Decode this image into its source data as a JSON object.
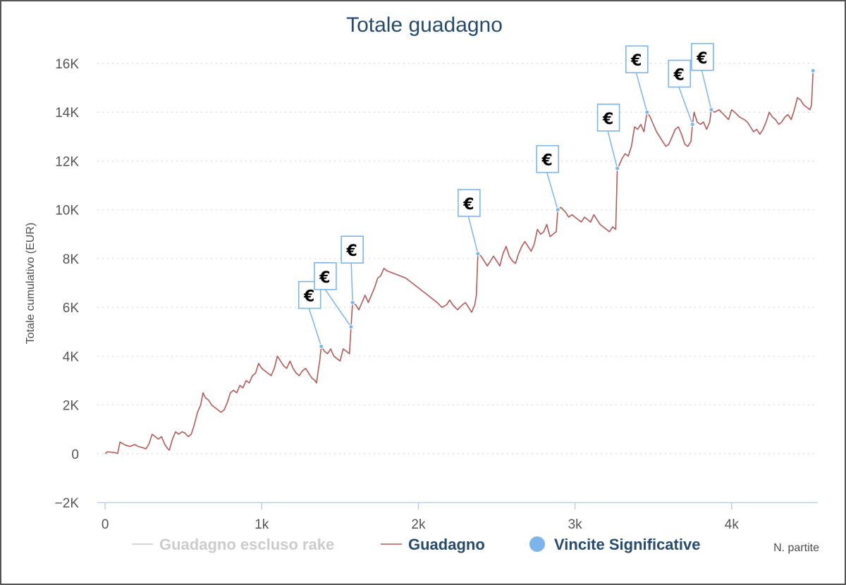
{
  "chart_data": {
    "type": "line",
    "title": "Totale guadagno",
    "xlabel": "N. partite",
    "ylabel": "Totale cumulativo (EUR)",
    "xlim": [
      -50,
      4550
    ],
    "ylim": [
      -2000,
      16000
    ],
    "x_ticks": [
      0,
      1000,
      2000,
      3000,
      4000
    ],
    "x_tick_labels": [
      "0",
      "1k",
      "2k",
      "3k",
      "4k"
    ],
    "y_ticks": [
      -2000,
      0,
      2000,
      4000,
      6000,
      8000,
      10000,
      12000,
      14000,
      16000
    ],
    "y_tick_labels": [
      "−2K",
      "0",
      "2K",
      "4K",
      "6K",
      "8K",
      "10K",
      "12K",
      "14K",
      "16K"
    ],
    "grid": true,
    "legend_position": "bottom",
    "series": [
      {
        "name": "Guadagno escluso rake",
        "color": "#cccccc",
        "hidden": true,
        "points": []
      },
      {
        "name": "Guadagno",
        "color": "#b55a5a",
        "points": [
          [
            0,
            0
          ],
          [
            15,
            80
          ],
          [
            60,
            50
          ],
          [
            80,
            10
          ],
          [
            95,
            480
          ],
          [
            130,
            350
          ],
          [
            160,
            300
          ],
          [
            190,
            380
          ],
          [
            210,
            300
          ],
          [
            240,
            250
          ],
          [
            260,
            200
          ],
          [
            280,
            400
          ],
          [
            300,
            800
          ],
          [
            320,
            700
          ],
          [
            340,
            600
          ],
          [
            360,
            700
          ],
          [
            380,
            400
          ],
          [
            400,
            200
          ],
          [
            410,
            150
          ],
          [
            430,
            600
          ],
          [
            450,
            900
          ],
          [
            470,
            800
          ],
          [
            490,
            900
          ],
          [
            510,
            850
          ],
          [
            530,
            700
          ],
          [
            550,
            800
          ],
          [
            570,
            1200
          ],
          [
            590,
            1700
          ],
          [
            610,
            2000
          ],
          [
            625,
            2500
          ],
          [
            640,
            2300
          ],
          [
            660,
            2200
          ],
          [
            680,
            2000
          ],
          [
            700,
            1900
          ],
          [
            720,
            1800
          ],
          [
            740,
            1700
          ],
          [
            760,
            1800
          ],
          [
            780,
            2100
          ],
          [
            800,
            2500
          ],
          [
            820,
            2600
          ],
          [
            840,
            2500
          ],
          [
            860,
            2800
          ],
          [
            880,
            2700
          ],
          [
            900,
            3000
          ],
          [
            920,
            2900
          ],
          [
            940,
            3200
          ],
          [
            960,
            3300
          ],
          [
            980,
            3700
          ],
          [
            1000,
            3500
          ],
          [
            1020,
            3400
          ],
          [
            1040,
            3300
          ],
          [
            1060,
            3200
          ],
          [
            1080,
            3500
          ],
          [
            1100,
            4000
          ],
          [
            1120,
            3800
          ],
          [
            1140,
            3600
          ],
          [
            1160,
            3500
          ],
          [
            1180,
            3800
          ],
          [
            1200,
            3500
          ],
          [
            1220,
            3300
          ],
          [
            1240,
            3200
          ],
          [
            1260,
            3400
          ],
          [
            1280,
            3500
          ],
          [
            1300,
            3300
          ],
          [
            1320,
            3100
          ],
          [
            1340,
            3000
          ],
          [
            1350,
            2900
          ],
          [
            1360,
            3400
          ],
          [
            1370,
            3800
          ],
          [
            1380,
            4400
          ],
          [
            1400,
            4200
          ],
          [
            1420,
            4100
          ],
          [
            1440,
            4300
          ],
          [
            1460,
            4000
          ],
          [
            1480,
            3900
          ],
          [
            1500,
            3800
          ],
          [
            1520,
            4300
          ],
          [
            1540,
            4200
          ],
          [
            1560,
            4100
          ],
          [
            1570,
            5200
          ],
          [
            1580,
            6200
          ],
          [
            1600,
            6100
          ],
          [
            1620,
            5900
          ],
          [
            1640,
            6200
          ],
          [
            1660,
            6500
          ],
          [
            1680,
            6200
          ],
          [
            1700,
            6500
          ],
          [
            1720,
            6800
          ],
          [
            1740,
            7200
          ],
          [
            1760,
            7300
          ],
          [
            1780,
            7600
          ],
          [
            1800,
            7500
          ],
          [
            1840,
            7400
          ],
          [
            1880,
            7300
          ],
          [
            1920,
            7200
          ],
          [
            1960,
            7000
          ],
          [
            2000,
            6800
          ],
          [
            2040,
            6600
          ],
          [
            2080,
            6400
          ],
          [
            2120,
            6200
          ],
          [
            2150,
            6000
          ],
          [
            2180,
            6100
          ],
          [
            2200,
            6300
          ],
          [
            2220,
            6100
          ],
          [
            2250,
            5900
          ],
          [
            2280,
            6100
          ],
          [
            2300,
            6200
          ],
          [
            2320,
            6000
          ],
          [
            2340,
            5800
          ],
          [
            2360,
            6100
          ],
          [
            2370,
            6500
          ],
          [
            2380,
            8200
          ],
          [
            2400,
            8100
          ],
          [
            2420,
            7900
          ],
          [
            2440,
            7700
          ],
          [
            2460,
            7900
          ],
          [
            2480,
            8100
          ],
          [
            2500,
            7900
          ],
          [
            2520,
            7700
          ],
          [
            2540,
            8200
          ],
          [
            2560,
            8500
          ],
          [
            2580,
            8100
          ],
          [
            2600,
            7900
          ],
          [
            2620,
            7800
          ],
          [
            2640,
            8200
          ],
          [
            2660,
            8500
          ],
          [
            2680,
            8700
          ],
          [
            2700,
            8500
          ],
          [
            2720,
            8300
          ],
          [
            2740,
            8600
          ],
          [
            2760,
            9200
          ],
          [
            2780,
            9000
          ],
          [
            2800,
            9100
          ],
          [
            2820,
            9400
          ],
          [
            2840,
            8900
          ],
          [
            2860,
            9000
          ],
          [
            2880,
            9100
          ],
          [
            2890,
            10000
          ],
          [
            2910,
            10100
          ],
          [
            2940,
            9900
          ],
          [
            2960,
            9700
          ],
          [
            2980,
            9800
          ],
          [
            3000,
            9700
          ],
          [
            3020,
            9600
          ],
          [
            3040,
            9500
          ],
          [
            3060,
            9700
          ],
          [
            3080,
            9600
          ],
          [
            3100,
            9500
          ],
          [
            3120,
            9800
          ],
          [
            3140,
            9600
          ],
          [
            3160,
            9400
          ],
          [
            3180,
            9300
          ],
          [
            3200,
            9200
          ],
          [
            3220,
            9100
          ],
          [
            3240,
            9300
          ],
          [
            3260,
            9200
          ],
          [
            3270,
            11700
          ],
          [
            3280,
            11800
          ],
          [
            3300,
            12100
          ],
          [
            3320,
            12300
          ],
          [
            3340,
            12200
          ],
          [
            3360,
            12600
          ],
          [
            3380,
            13400
          ],
          [
            3400,
            13300
          ],
          [
            3420,
            13500
          ],
          [
            3440,
            13200
          ],
          [
            3460,
            14000
          ],
          [
            3480,
            13800
          ],
          [
            3500,
            13500
          ],
          [
            3520,
            13200
          ],
          [
            3540,
            13000
          ],
          [
            3560,
            12800
          ],
          [
            3580,
            12600
          ],
          [
            3600,
            12700
          ],
          [
            3620,
            13000
          ],
          [
            3640,
            13300
          ],
          [
            3660,
            13400
          ],
          [
            3680,
            13100
          ],
          [
            3700,
            12700
          ],
          [
            3720,
            12600
          ],
          [
            3740,
            12800
          ],
          [
            3750,
            13500
          ],
          [
            3760,
            14000
          ],
          [
            3780,
            13600
          ],
          [
            3800,
            13500
          ],
          [
            3820,
            13600
          ],
          [
            3840,
            13300
          ],
          [
            3860,
            13600
          ],
          [
            3870,
            14100
          ],
          [
            3890,
            14000
          ],
          [
            3920,
            14100
          ],
          [
            3950,
            13900
          ],
          [
            3980,
            13700
          ],
          [
            4000,
            14100
          ],
          [
            4020,
            14000
          ],
          [
            4050,
            13800
          ],
          [
            4080,
            13700
          ],
          [
            4100,
            13600
          ],
          [
            4120,
            13400
          ],
          [
            4140,
            13200
          ],
          [
            4160,
            13300
          ],
          [
            4180,
            13100
          ],
          [
            4200,
            13300
          ],
          [
            4220,
            13600
          ],
          [
            4240,
            14000
          ],
          [
            4260,
            13800
          ],
          [
            4280,
            13700
          ],
          [
            4300,
            13500
          ],
          [
            4320,
            13600
          ],
          [
            4340,
            13800
          ],
          [
            4360,
            13900
          ],
          [
            4380,
            13700
          ],
          [
            4400,
            14100
          ],
          [
            4420,
            14600
          ],
          [
            4440,
            14500
          ],
          [
            4460,
            14300
          ],
          [
            4480,
            14200
          ],
          [
            4500,
            14100
          ],
          [
            4510,
            14300
          ],
          [
            4520,
            15700
          ]
        ]
      },
      {
        "name": "Vincite Significative",
        "color": "#7cb5ec",
        "marker_label": "€",
        "points": [
          [
            1380,
            4400
          ],
          [
            1570,
            5200
          ],
          [
            1580,
            6200
          ],
          [
            2380,
            8200
          ],
          [
            2890,
            10000
          ],
          [
            3270,
            11700
          ],
          [
            3460,
            14000
          ],
          [
            3750,
            13500
          ],
          [
            3870,
            14100
          ],
          [
            4520,
            15700
          ]
        ]
      }
    ]
  }
}
